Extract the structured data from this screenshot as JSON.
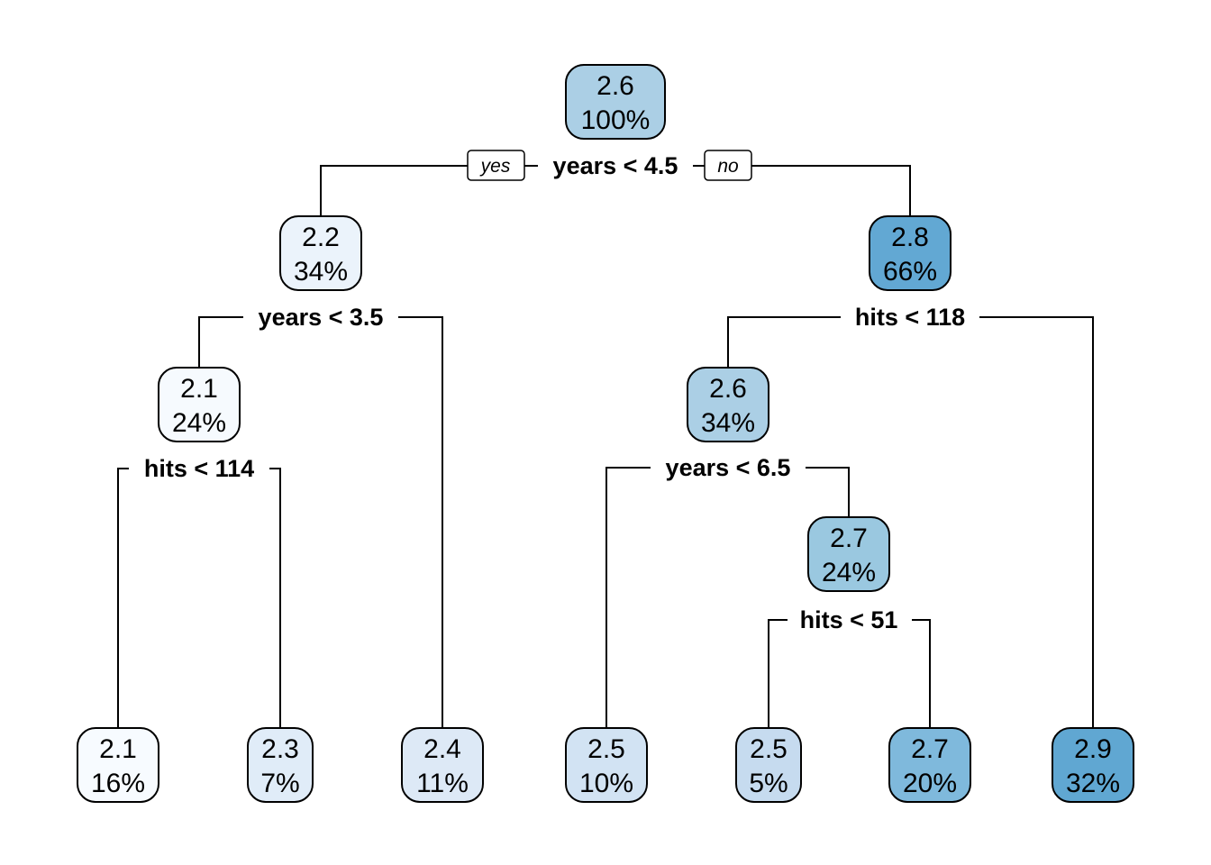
{
  "tree": {
    "branch_labels": {
      "yes": "yes",
      "no": "no"
    },
    "nodes": [
      {
        "id": "root",
        "value": "2.6",
        "percent": "100%",
        "fill": "#abcfe5"
      },
      {
        "id": "L",
        "value": "2.2",
        "percent": "34%",
        "fill": "#ebf3fb"
      },
      {
        "id": "R",
        "value": "2.8",
        "percent": "66%",
        "fill": "#62a8d3"
      },
      {
        "id": "LL",
        "value": "2.1",
        "percent": "24%",
        "fill": "#f6fafe"
      },
      {
        "id": "RL",
        "value": "2.6",
        "percent": "34%",
        "fill": "#abcfe5"
      },
      {
        "id": "RLR",
        "value": "2.7",
        "percent": "24%",
        "fill": "#9ac8e0"
      },
      {
        "id": "leaf1",
        "value": "2.1",
        "percent": "16%",
        "fill": "#f7fbff"
      },
      {
        "id": "leaf2",
        "value": "2.3",
        "percent": "7%",
        "fill": "#e0ecf8"
      },
      {
        "id": "leaf3",
        "value": "2.4",
        "percent": "11%",
        "fill": "#dde9f6"
      },
      {
        "id": "leaf4",
        "value": "2.5",
        "percent": "10%",
        "fill": "#d2e3f3"
      },
      {
        "id": "leaf5",
        "value": "2.5",
        "percent": "5%",
        "fill": "#c6dbef"
      },
      {
        "id": "leaf6",
        "value": "2.7",
        "percent": "20%",
        "fill": "#7fb9dc"
      },
      {
        "id": "leaf7",
        "value": "2.9",
        "percent": "32%",
        "fill": "#60a7d2"
      }
    ],
    "splits": [
      {
        "id": "s_root",
        "label": "years < 4.5"
      },
      {
        "id": "s_L",
        "label": "years < 3.5"
      },
      {
        "id": "s_R",
        "label": "hits < 118"
      },
      {
        "id": "s_LL",
        "label": "hits < 114"
      },
      {
        "id": "s_RL",
        "label": "years < 6.5"
      },
      {
        "id": "s_RLR",
        "label": "hits < 51"
      }
    ]
  }
}
